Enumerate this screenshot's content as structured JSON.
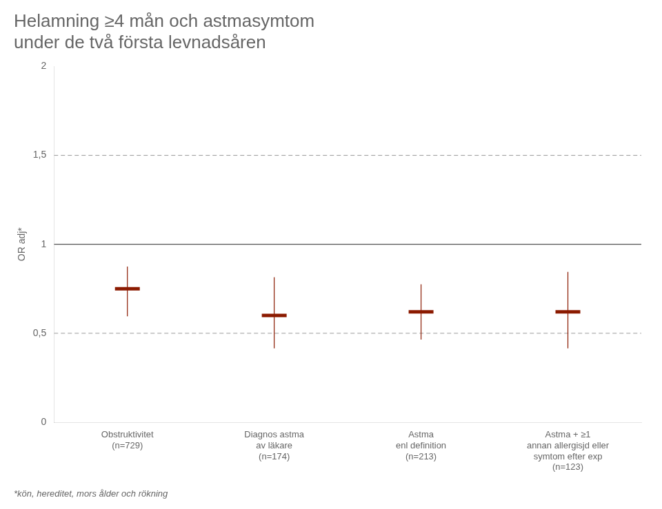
{
  "chart_data": {
    "type": "errorbar",
    "title": [
      "Helamning ≥4 mån och astmasymtom",
      "under de två första levnadsåren"
    ],
    "y_label": "OR adj*",
    "footnote": "*kön, hereditet, mors ålder och rökning",
    "categories": [
      [
        "Obstruktivitet",
        "(n=729)"
      ],
      [
        "Diagnos astma",
        "av läkare",
        "(n=174)"
      ],
      [
        "Astma",
        "enl definition",
        "(n=213)"
      ],
      [
        "Astma + ≥1",
        "annan allergisjd eller",
        "symtom efter exp",
        "(n=123)"
      ]
    ],
    "values": [
      0.75,
      0.6,
      0.62,
      0.62
    ],
    "ci_lower": [
      0.595,
      0.415,
      0.465,
      0.415
    ],
    "ci_upper": [
      0.875,
      0.815,
      0.775,
      0.845
    ],
    "color": "#8B1A00",
    "marker": "line",
    "reference_lines": [
      {
        "value": 1.0,
        "line_style": "solid"
      },
      {
        "value": 1.5,
        "line_style": "dashed"
      },
      {
        "value": 0.5,
        "line_style": "dashed"
      }
    ],
    "ylim": [
      0,
      2.0
    ],
    "yticks": [
      0,
      {
        "value": 0.5,
        "label": "0,5"
      },
      1,
      {
        "value": 1.5,
        "label": "1,5"
      },
      2
    ],
    "grid": false
  }
}
